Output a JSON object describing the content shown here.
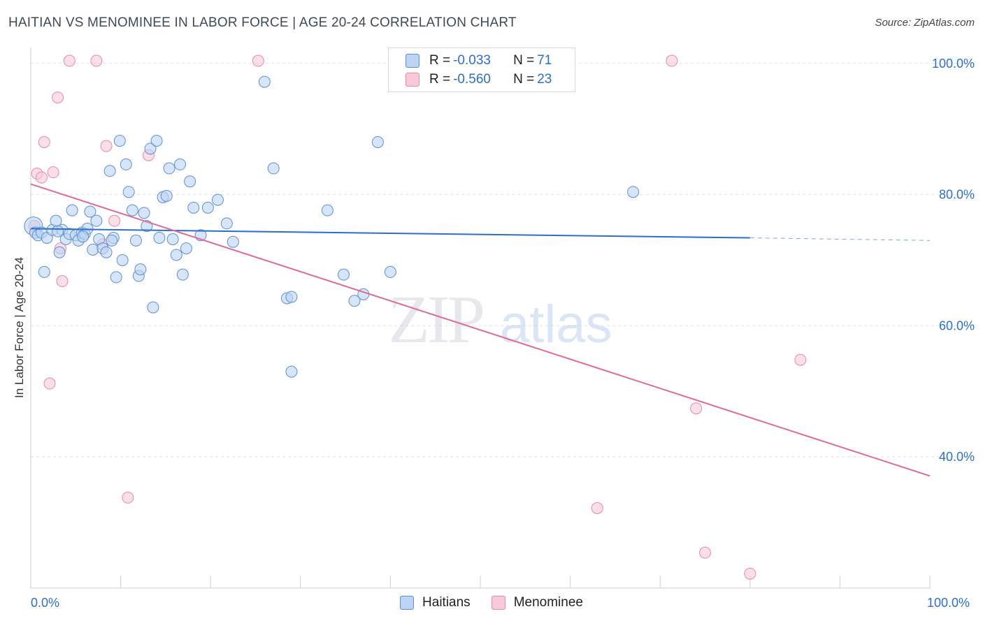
{
  "title": "HAITIAN VS MENOMINEE IN LABOR FORCE | AGE 20-24 CORRELATION CHART",
  "source": "Source: ZipAtlas.com",
  "watermark": {
    "zip": "ZIP",
    "atlas": "atlas"
  },
  "colors": {
    "blue": "#5d8fd6",
    "blue_fill": "#bcd4f5",
    "pink": "#e58aa9",
    "pink_fill": "#f9c9d8",
    "blue_line": "#2d6fc7",
    "pink_line": "#e0699a",
    "axis_text": "#2d6fc7"
  },
  "legend": {
    "r_label": "R =",
    "n_label": "N =",
    "rows": [
      {
        "r": "-0.033",
        "n": "71"
      },
      {
        "r": "-0.560",
        "n": "23"
      }
    ]
  },
  "bottom_legend": [
    "Haitians",
    "Menominee"
  ],
  "chart_data": {
    "type": "scatter",
    "title": "HAITIAN VS MENOMINEE IN LABOR FORCE | AGE 20-24 CORRELATION CHART",
    "xlabel": "",
    "ylabel": "In Labor Force | Age 20-24",
    "xlim": [
      0,
      100
    ],
    "ylim": [
      20,
      102
    ],
    "x_tick_labels": [
      "0.0%",
      "100.0%"
    ],
    "y_tick_labels": [
      "100.0%",
      "80.0%",
      "60.0%",
      "40.0%"
    ],
    "y_ticks": [
      100,
      80,
      60,
      40
    ],
    "grid": true,
    "legend_position": "top-center",
    "series": [
      {
        "name": "Haitians",
        "r": -0.033,
        "n": 71,
        "trend": {
          "x": [
            0,
            80
          ],
          "y": [
            74.8,
            73.4
          ],
          "dashed_to": 100,
          "dashed_y": 73.0
        },
        "points": [
          [
            0.3,
            75.2
          ],
          [
            0.5,
            74.2
          ],
          [
            0.8,
            73.8
          ],
          [
            1.2,
            74.2
          ],
          [
            1.5,
            68.2
          ],
          [
            1.8,
            73.4
          ],
          [
            2.4,
            74.6
          ],
          [
            2.8,
            76.0
          ],
          [
            3.2,
            71.2
          ],
          [
            3.5,
            74.6
          ],
          [
            3.9,
            73.2
          ],
          [
            4.3,
            74.0
          ],
          [
            4.6,
            77.6
          ],
          [
            5.0,
            73.8
          ],
          [
            5.3,
            73.0
          ],
          [
            5.7,
            74.2
          ],
          [
            6.0,
            74.0
          ],
          [
            6.3,
            74.8
          ],
          [
            6.6,
            77.4
          ],
          [
            6.9,
            71.6
          ],
          [
            7.3,
            76.0
          ],
          [
            7.6,
            73.2
          ],
          [
            8.0,
            71.8
          ],
          [
            8.4,
            71.2
          ],
          [
            8.8,
            83.6
          ],
          [
            9.2,
            73.4
          ],
          [
            9.5,
            67.4
          ],
          [
            9.9,
            88.2
          ],
          [
            10.2,
            70.0
          ],
          [
            10.6,
            84.6
          ],
          [
            10.9,
            80.4
          ],
          [
            11.3,
            77.6
          ],
          [
            11.7,
            73.0
          ],
          [
            12.0,
            67.6
          ],
          [
            12.2,
            68.6
          ],
          [
            12.6,
            77.2
          ],
          [
            12.9,
            75.2
          ],
          [
            13.3,
            87.0
          ],
          [
            13.6,
            62.8
          ],
          [
            14.0,
            88.2
          ],
          [
            14.3,
            73.4
          ],
          [
            14.7,
            79.6
          ],
          [
            15.1,
            79.8
          ],
          [
            15.4,
            84.0
          ],
          [
            15.8,
            73.2
          ],
          [
            16.2,
            70.8
          ],
          [
            16.6,
            84.6
          ],
          [
            16.9,
            67.8
          ],
          [
            17.3,
            71.8
          ],
          [
            17.7,
            82.0
          ],
          [
            18.1,
            78.0
          ],
          [
            18.9,
            73.8
          ],
          [
            19.7,
            78.0
          ],
          [
            20.8,
            79.2
          ],
          [
            21.8,
            75.6
          ],
          [
            22.5,
            72.8
          ],
          [
            26.0,
            97.2
          ],
          [
            27.0,
            84.0
          ],
          [
            28.5,
            64.2
          ],
          [
            29.0,
            64.4
          ],
          [
            29.0,
            53.0
          ],
          [
            33.0,
            77.6
          ],
          [
            34.8,
            67.8
          ],
          [
            36.0,
            63.8
          ],
          [
            37.0,
            64.8
          ],
          [
            38.6,
            88.0
          ],
          [
            40.0,
            68.2
          ],
          [
            67.0,
            80.4
          ],
          [
            3.0,
            74.4
          ],
          [
            5.8,
            73.6
          ],
          [
            9.0,
            73.0
          ]
        ]
      },
      {
        "name": "Menominee",
        "r": -0.56,
        "n": 23,
        "trend": {
          "x": [
            0,
            100
          ],
          "y": [
            81.6,
            37.1
          ]
        },
        "points": [
          [
            0.4,
            75.2
          ],
          [
            0.7,
            83.2
          ],
          [
            1.2,
            82.6
          ],
          [
            1.5,
            88.0
          ],
          [
            2.1,
            51.2
          ],
          [
            2.5,
            83.4
          ],
          [
            3.0,
            94.8
          ],
          [
            3.3,
            71.8
          ],
          [
            3.5,
            66.8
          ],
          [
            4.3,
            100.4
          ],
          [
            7.3,
            100.4
          ],
          [
            8.0,
            72.4
          ],
          [
            8.4,
            87.4
          ],
          [
            9.3,
            76.0
          ],
          [
            10.8,
            33.8
          ],
          [
            13.1,
            86.0
          ],
          [
            25.3,
            100.4
          ],
          [
            63.0,
            32.2
          ],
          [
            71.3,
            100.4
          ],
          [
            74.0,
            47.4
          ],
          [
            75.0,
            25.4
          ],
          [
            80.0,
            22.2
          ],
          [
            85.6,
            54.8
          ]
        ]
      }
    ]
  }
}
